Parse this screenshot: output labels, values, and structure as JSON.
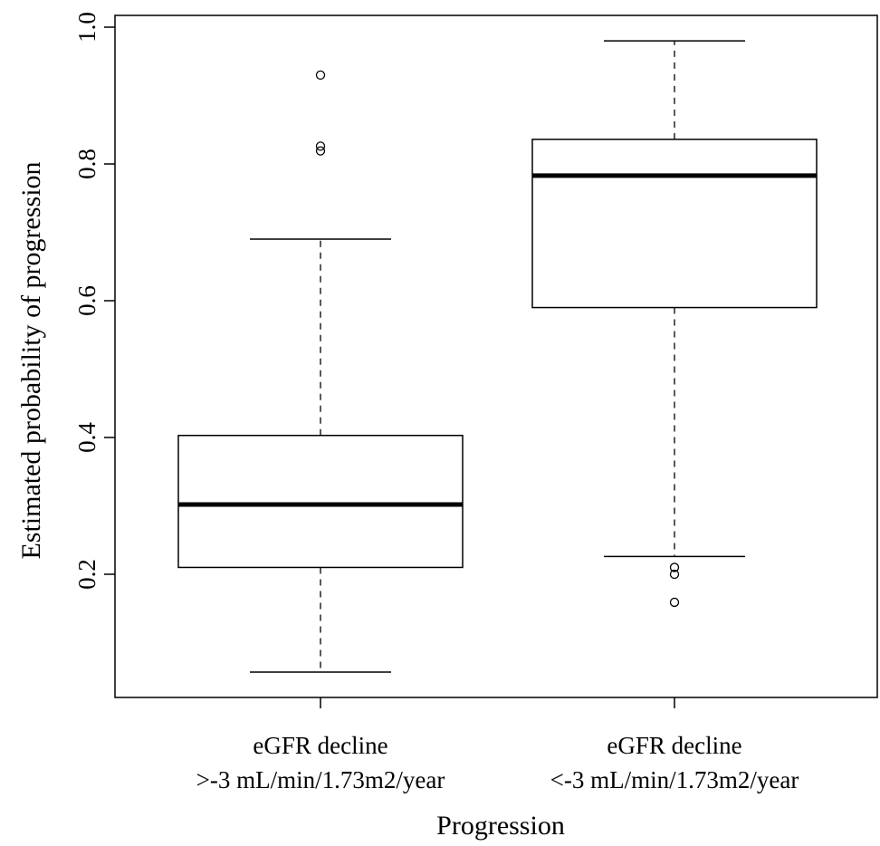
{
  "chart_data": {
    "type": "box",
    "xlabel": "Progression",
    "ylabel": "Estimated probability of progression",
    "ylim": [
      0.0,
      1.03
    ],
    "yticks": [
      0.2,
      0.4,
      0.6,
      0.8,
      1.0
    ],
    "ytick_labels": [
      "0.2",
      "0.4",
      "0.6",
      "0.8",
      "1.0"
    ],
    "grid": false,
    "categories": [
      {
        "label_line1": "eGFR decline",
        "label_line2": ">-3 mL/min/1.73m2/year",
        "whisker_low": 0.057,
        "q1": 0.21,
        "median": 0.302,
        "q3": 0.403,
        "whisker_high": 0.69,
        "outliers": [
          0.93,
          0.826,
          0.819
        ]
      },
      {
        "label_line1": "eGFR decline",
        "label_line2": "<-3 mL/min/1.73m2/year",
        "whisker_low": 0.226,
        "q1": 0.59,
        "median": 0.783,
        "q3": 0.836,
        "whisker_high": 0.98,
        "outliers": [
          0.21,
          0.2,
          0.159
        ]
      }
    ]
  }
}
